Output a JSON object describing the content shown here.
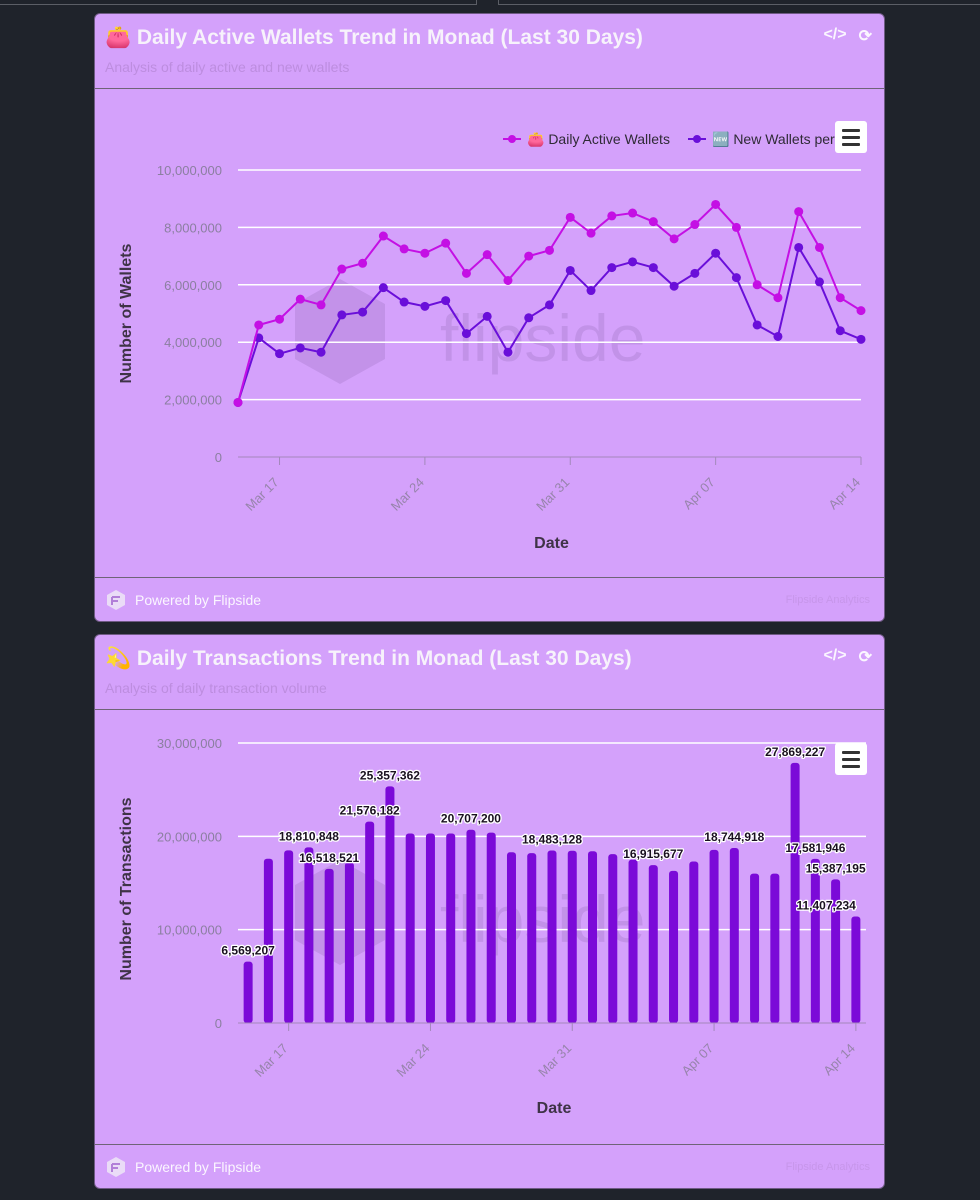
{
  "colors": {
    "page_bg": "#1f232b",
    "card_bg": "#d4a1fb",
    "daily_active": "#c410e4",
    "new_wallets": "#6a0fd9",
    "bars": "#7b0ad8"
  },
  "card1": {
    "emoji": "👛",
    "title": "Daily Active Wallets Trend in Monad (Last 30 Days)",
    "subtitle": "Analysis of daily active and new wallets",
    "watermark": "flipside",
    "footer_text": "Powered by Flipside",
    "footer_note": "Flipside Analytics"
  },
  "card2": {
    "emoji": "💫",
    "title": "Daily Transactions Trend in Monad (Last 30 Days)",
    "subtitle": "Analysis of daily transaction volume",
    "watermark": "flipside",
    "footer_text": "Powered by Flipside",
    "footer_note": "Flipside Analytics"
  },
  "icons": {
    "code": "code-icon",
    "refresh": "refresh-icon",
    "menu": "hamburger-menu-icon",
    "logo": "flipside-logo-icon"
  },
  "chart_data": [
    {
      "type": "line",
      "x": [
        "Mar 15",
        "Mar 16",
        "Mar 17",
        "Mar 18",
        "Mar 19",
        "Mar 20",
        "Mar 21",
        "Mar 22",
        "Mar 23",
        "Mar 24",
        "Mar 25",
        "Mar 26",
        "Mar 27",
        "Mar 28",
        "Mar 29",
        "Mar 30",
        "Mar 31",
        "Apr 01",
        "Apr 02",
        "Apr 03",
        "Apr 04",
        "Apr 05",
        "Apr 06",
        "Apr 07",
        "Apr 08",
        "Apr 09",
        "Apr 10",
        "Apr 11",
        "Apr 12",
        "Apr 13",
        "Apr 14"
      ],
      "xticks": [
        "Mar 17",
        "Mar 24",
        "Mar 31",
        "Apr 07",
        "Apr 14"
      ],
      "series": [
        {
          "name": "👛 Daily Active Wallets",
          "color": "#c410e4",
          "values": [
            1900000,
            4600000,
            4800000,
            5500000,
            5300000,
            6550000,
            6750000,
            7700000,
            7250000,
            7100000,
            7450000,
            6400000,
            7050000,
            6150000,
            7000000,
            7200000,
            8350000,
            7800000,
            8400000,
            8500000,
            8200000,
            7600000,
            8100000,
            8800000,
            8000000,
            6000000,
            5550000,
            8550000,
            7300000,
            5550000,
            5100000
          ]
        },
        {
          "name": "🆕 New Wallets per Day",
          "color": "#6a0fd9",
          "values": [
            1900000,
            4150000,
            3600000,
            3800000,
            3650000,
            4950000,
            5050000,
            5900000,
            5400000,
            5250000,
            5450000,
            4300000,
            4900000,
            3650000,
            4850000,
            5300000,
            6500000,
            5800000,
            6600000,
            6800000,
            6600000,
            5950000,
            6400000,
            7100000,
            6250000,
            4600000,
            4200000,
            7300000,
            6100000,
            4400000,
            4100000
          ]
        }
      ],
      "xlabel": "Date",
      "ylabel": "Number of Wallets",
      "ylim": [
        0,
        10000000
      ],
      "yticks": [
        "0",
        "2,000,000",
        "4,000,000",
        "6,000,000",
        "8,000,000",
        "10,000,000"
      ],
      "legend": "top-right",
      "grid": true
    },
    {
      "type": "bar",
      "x": [
        "Mar 15",
        "Mar 16",
        "Mar 17",
        "Mar 18",
        "Mar 19",
        "Mar 20",
        "Mar 21",
        "Mar 22",
        "Mar 23",
        "Mar 24",
        "Mar 25",
        "Mar 26",
        "Mar 27",
        "Mar 28",
        "Mar 29",
        "Mar 30",
        "Mar 31",
        "Apr 01",
        "Apr 02",
        "Apr 03",
        "Apr 04",
        "Apr 05",
        "Apr 06",
        "Apr 07",
        "Apr 08",
        "Apr 09",
        "Apr 10",
        "Apr 11",
        "Apr 12",
        "Apr 13",
        "Apr 14"
      ],
      "xticks": [
        "Mar 17",
        "Mar 24",
        "Mar 31",
        "Apr 07",
        "Apr 14"
      ],
      "values": [
        6569207,
        17600000,
        18500000,
        18810848,
        16518521,
        17200000,
        21576182,
        25357362,
        20300000,
        20300000,
        20300000,
        20707200,
        20400000,
        18300000,
        18200000,
        18483128,
        18450000,
        18400000,
        18100000,
        17500000,
        16915677,
        16300000,
        17300000,
        18550000,
        18744918,
        16000000,
        16000000,
        27869227,
        17581946,
        15387195,
        11407234
      ],
      "labels": [
        {
          "i": 0,
          "text": "6,569,207"
        },
        {
          "i": 3,
          "text": "18,810,848"
        },
        {
          "i": 4,
          "text": "16,518,521"
        },
        {
          "i": 6,
          "text": "21,576,182"
        },
        {
          "i": 7,
          "text": "25,357,362"
        },
        {
          "i": 11,
          "text": "20,707,200"
        },
        {
          "i": 15,
          "text": "18,483,128"
        },
        {
          "i": 20,
          "text": "16,915,677"
        },
        {
          "i": 24,
          "text": "18,744,918"
        },
        {
          "i": 27,
          "text": "27,869,227"
        },
        {
          "i": 28,
          "text": "17,581,946"
        },
        {
          "i": 29,
          "text": "15,387,195"
        },
        {
          "i": 30,
          "text": "11,407,234"
        }
      ],
      "xlabel": "Date",
      "ylabel": "Number of Transactions",
      "ylim": [
        0,
        30000000
      ],
      "yticks": [
        "0",
        "10,000,000",
        "20,000,000",
        "30,000,000"
      ],
      "grid": true
    }
  ]
}
